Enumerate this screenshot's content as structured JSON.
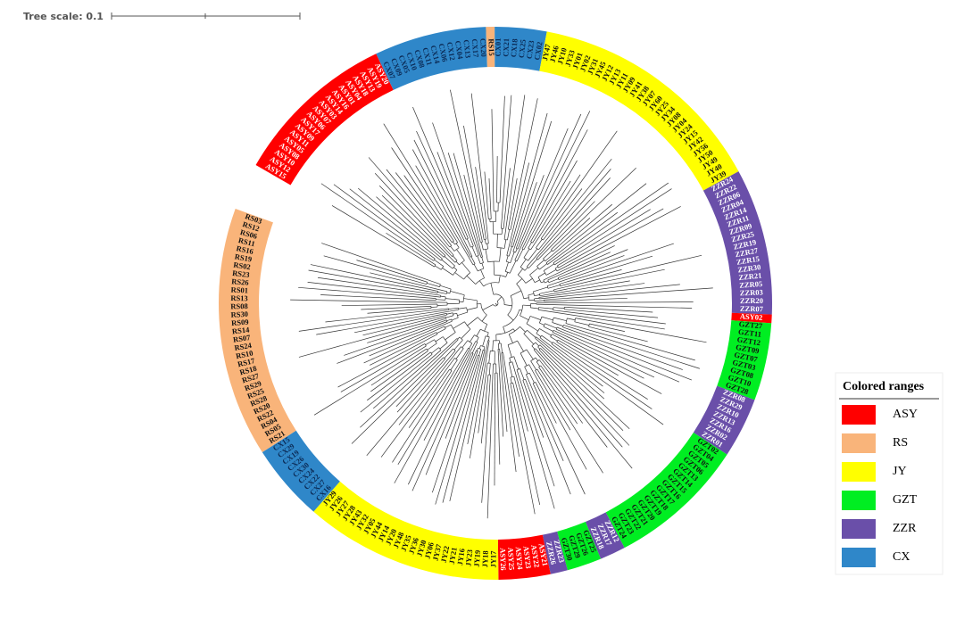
{
  "tree_scale": {
    "label": "Tree scale: 0.1"
  },
  "ranges": [
    {
      "color": "#ff0000",
      "leaves": [
        "ASY15",
        "ASY12",
        "ASY10",
        "ASY08",
        "ASY05",
        "ASY11",
        "ASY09",
        "ASY17",
        "ASY06",
        "ASY07",
        "ASY03",
        "ASY14",
        "ASY16",
        "ASY01",
        "ASY04",
        "ASY18",
        "ASY13",
        "ASY19",
        "ASY20"
      ]
    },
    {
      "color": "#2f87c9",
      "leaves": [
        "CX07",
        "CX09",
        "CX05",
        "CX10",
        "CX08",
        "CX11",
        "CX14",
        "CX06",
        "CX12",
        "CX04",
        "CX13",
        "CX17",
        "CX20"
      ]
    },
    {
      "color": "#f9b47a",
      "leaves": [
        "RS15"
      ]
    },
    {
      "color": "#2f87c9",
      "leaves": [
        "CX01",
        "CX21",
        "CX18",
        "CX25",
        "CX23",
        "CX02"
      ]
    },
    {
      "color": "#ffff00",
      "leaves": [
        "JY47",
        "JY46",
        "JY10",
        "JY33",
        "JY01",
        "JY02",
        "JY31",
        "JY45",
        "JY12",
        "JY13",
        "JY11",
        "JY09",
        "JY41",
        "JY38",
        "JY07",
        "JY60",
        "JY25",
        "JY34",
        "JY08",
        "JY04",
        "JY24",
        "JY15",
        "JY42",
        "JY56",
        "JY50",
        "JY49",
        "JY40",
        "JY39"
      ]
    },
    {
      "color": "#6a4fa9",
      "leaves": [
        "ZZR24",
        "ZZR22",
        "ZZR06",
        "ZZR04",
        "ZZR14",
        "ZZR11",
        "ZZR09",
        "ZZR25",
        "ZZR19",
        "ZZR27",
        "ZZR15",
        "ZZR30",
        "ZZR21",
        "ZZR05",
        "ZZR03",
        "ZZR20",
        "ZZR07"
      ]
    },
    {
      "color": "#ff0000",
      "leaves": [
        "ASY02"
      ]
    },
    {
      "color": "#00ee22",
      "leaves": [
        "GZT27",
        "GZT11",
        "GZT12",
        "GZT09",
        "GZT07",
        "GZT03",
        "GZT08",
        "GZT10",
        "GZT28"
      ]
    },
    {
      "color": "#6a4fa9",
      "leaves": [
        "ZZR08",
        "ZZR29",
        "ZZR10",
        "ZZR13",
        "ZZR16",
        "ZZR02",
        "ZZR01"
      ]
    },
    {
      "color": "#00ee22",
      "leaves": [
        "GZT02",
        "GZT04",
        "GZT05",
        "GZT06",
        "GZT13",
        "GZT14",
        "GZT15",
        "GZT16",
        "GZT17",
        "GZT18",
        "GZT19",
        "GZT20",
        "GZT21",
        "GZT22",
        "GZT23",
        "GZT24"
      ]
    },
    {
      "color": "#6a4fa9",
      "leaves": [
        "ZZR12",
        "ZZR17",
        "ZZR18"
      ]
    },
    {
      "color": "#00ee22",
      "leaves": [
        "GZT25",
        "GZT26",
        "GZT29",
        "GZT30"
      ]
    },
    {
      "color": "#6a4fa9",
      "leaves": [
        "ZZR23",
        "ZZR26"
      ]
    },
    {
      "color": "#ff0000",
      "leaves": [
        "ASY21",
        "ASY22",
        "ASY23",
        "ASY24",
        "ASY25",
        "ASY26"
      ]
    },
    {
      "color": "#ffff00",
      "leaves": [
        "JY17",
        "JY18",
        "JY19",
        "JY23",
        "JY16",
        "JY21",
        "JY22",
        "JY37",
        "JY06",
        "JY30",
        "JY36",
        "JY35",
        "JY48",
        "JY20",
        "JY14",
        "JY44",
        "JY05",
        "JY32",
        "JY43",
        "JY28",
        "JY27",
        "JY26",
        "JY29"
      ]
    },
    {
      "color": "#2f87c9",
      "leaves": [
        "CX16",
        "CX27",
        "CX22",
        "CX24",
        "CX30",
        "CX26",
        "CX19",
        "CX29",
        "CX15"
      ]
    },
    {
      "color": "#f9b47a",
      "leaves": [
        "RS21",
        "RS05",
        "RS04",
        "RS22",
        "RS20",
        "RS28",
        "RS25",
        "RS29",
        "RS27",
        "RS18",
        "RS17",
        "RS10",
        "RS24",
        "RS07",
        "RS14",
        "RS09",
        "RS30",
        "RS08",
        "RS13",
        "RS01",
        "RS26",
        "RS23",
        "RS02",
        "RS19",
        "RS16",
        "RS11",
        "RS06",
        "RS12",
        "RS03"
      ]
    }
  ],
  "legend": {
    "title": "Colored ranges",
    "items": [
      {
        "label": "ASY",
        "color": "#ff0000"
      },
      {
        "label": "RS",
        "color": "#f9b47a"
      },
      {
        "label": "JY",
        "color": "#ffff00"
      },
      {
        "label": "GZT",
        "color": "#00ee22"
      },
      {
        "label": "ZZR",
        "color": "#6a4fa9"
      },
      {
        "label": "CX",
        "color": "#2f87c9"
      }
    ]
  }
}
